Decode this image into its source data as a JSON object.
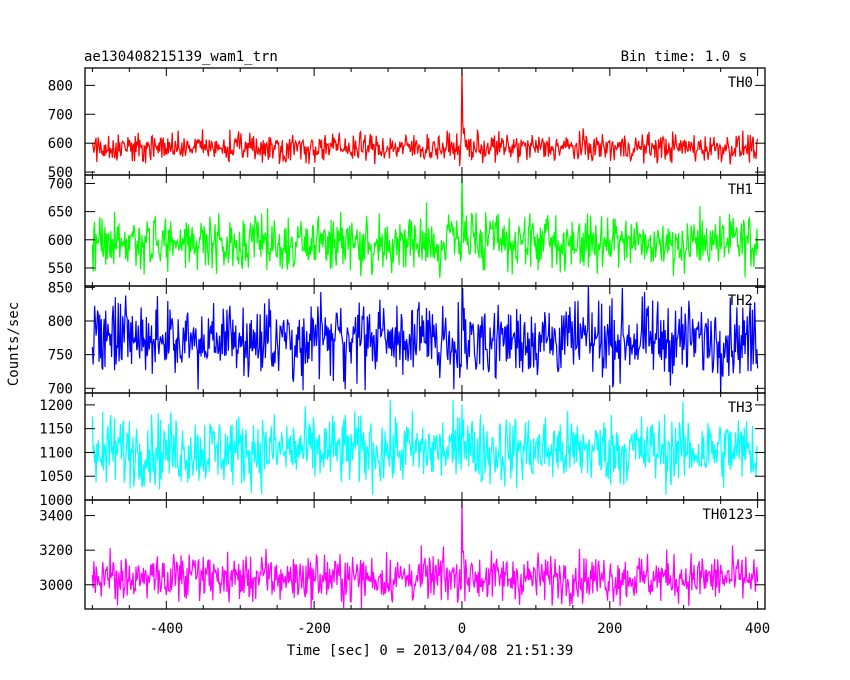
{
  "header": {
    "title": "ae130408215139_wam1_trn",
    "bin_time": "Bin time: 1.0 s"
  },
  "chart_data": {
    "type": "line",
    "title": "ae130408215139_wam1_trn",
    "xlabel": "Time [sec] 0 = 2013/04/08 21:51:39",
    "ylabel": "Counts/sec",
    "xlim": [
      -510,
      410
    ],
    "x_ticks": [
      -400,
      -200,
      0,
      200,
      400
    ],
    "grid": false,
    "series_range": [
      -500,
      400
    ],
    "panels": [
      {
        "name": "TH0",
        "color": "#ff0000",
        "ylim": [
          490,
          860
        ],
        "y_ticks": [
          500,
          600,
          700,
          800
        ],
        "baseline": 585,
        "noise": 25,
        "spike_peak": 860
      },
      {
        "name": "TH1",
        "color": "#00ff00",
        "ylim": [
          518,
          715
        ],
        "y_ticks": [
          550,
          600,
          650,
          700
        ],
        "baseline": 595,
        "noise": 25,
        "spike_peak": 715
      },
      {
        "name": "TH2",
        "color": "#0000ff",
        "ylim": [
          693,
          852
        ],
        "y_ticks": [
          700,
          750,
          800,
          850
        ],
        "baseline": 773,
        "noise": 28,
        "spike_peak": 840
      },
      {
        "name": "TH3",
        "color": "#00ffff",
        "ylim": [
          1000,
          1225
        ],
        "y_ticks": [
          1000,
          1050,
          1100,
          1150,
          1200
        ],
        "baseline": 1105,
        "noise": 38,
        "spike_peak": 1200
      },
      {
        "name": "TH0123",
        "color": "#ff00ff",
        "ylim": [
          2860,
          3490
        ],
        "y_ticks": [
          3000,
          3200,
          3400
        ],
        "baseline": 3040,
        "noise": 70,
        "spike_peak": 3490
      }
    ]
  }
}
